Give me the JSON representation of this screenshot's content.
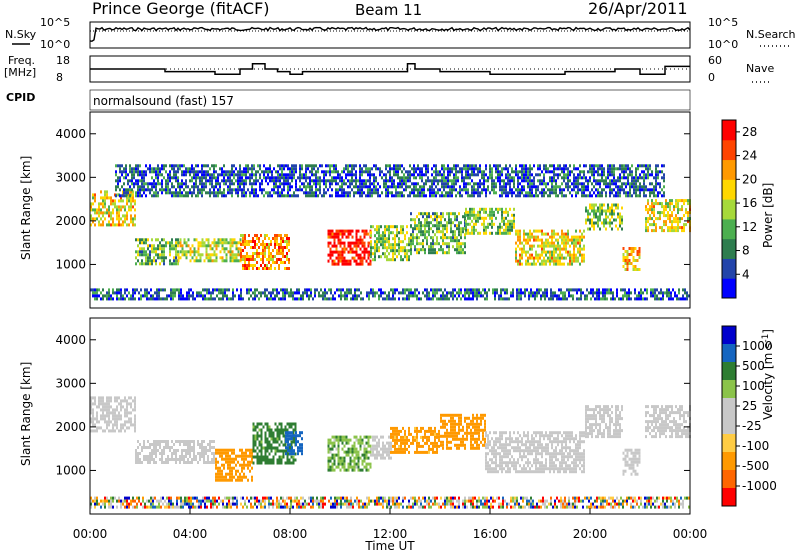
{
  "header": {
    "station": "Prince George (fitACF)",
    "beam": "Beam 11",
    "date": "26/Apr/2011"
  },
  "aux_labels": {
    "nsky": "N.Sky",
    "nsearch": "N.Search",
    "freq_line1": "Freq.",
    "freq_line2": "[MHz]",
    "nave": "Nave",
    "cpid": "CPID",
    "cpid_value": "normalsound (fast) 157",
    "noise_ticks": [
      "10^5",
      "10^0"
    ],
    "noise_ticks_right": [
      "10^5",
      "10^0"
    ],
    "freq_ticks": [
      "18",
      "8"
    ],
    "nave_ticks": [
      "60",
      "0"
    ]
  },
  "colors": {
    "power_scale": [
      "#0000ff",
      "#2244aa",
      "#2e7d4f",
      "#4caf50",
      "#a6d93a",
      "#ffd700",
      "#ff9900",
      "#ff4400",
      "#ff0000"
    ],
    "velocity_scale": [
      "#ff0000",
      "#ff6600",
      "#ff9900",
      "#ffcc44",
      "#c8c8c8",
      "#c8c8c8",
      "#8bc34a",
      "#2e7d32",
      "#1565c0",
      "#0000cc"
    ],
    "ground_scatter": "#c8c8c8"
  },
  "chart_data": [
    {
      "type": "line",
      "panel": "noise",
      "series": [
        {
          "name": "N.Sky",
          "x": [
            "00:00",
            "04:00",
            "08:00",
            "12:00",
            "16:00",
            "20:00",
            "00:00"
          ],
          "values": [
            100000.0,
            100000.0,
            100000.0,
            100000.0,
            100000.0,
            100000.0,
            100000.0
          ]
        }
      ],
      "yticks": [
        "10^0",
        "10^5"
      ],
      "ylim": [
        1,
        100000
      ],
      "yscale": "log"
    },
    {
      "type": "line",
      "panel": "frequency",
      "series": [
        {
          "name": "Freq.",
          "x_hours": [
            0,
            2,
            3,
            4,
            5,
            6,
            6.5,
            7,
            7.5,
            8,
            8.5,
            9,
            10,
            11,
            12,
            12.7,
            13,
            13.7,
            14,
            15.5,
            16,
            17,
            18,
            19,
            20,
            21,
            22,
            23,
            24
          ],
          "values": [
            13,
            13,
            12,
            12,
            11,
            13,
            15,
            13,
            12,
            11,
            12,
            12,
            12,
            12,
            12,
            15,
            13,
            13,
            12,
            12,
            11,
            11,
            11,
            12,
            12,
            13,
            11,
            14,
            14
          ]
        },
        {
          "name": "Nave",
          "x_hours": [
            0,
            24
          ],
          "values": [
            30,
            30
          ]
        }
      ],
      "yticks": [
        "8",
        "18"
      ],
      "ylim": [
        8,
        18
      ],
      "y2ticks": [
        "0",
        "60"
      ],
      "y2lim": [
        0,
        60
      ]
    },
    {
      "type": "heatmap",
      "panel": "power",
      "xlabel": "",
      "ylabel": "Slant Range [km]",
      "xlim_hours": [
        0,
        24
      ],
      "ylim": [
        0,
        4500
      ],
      "yticks": [
        1000,
        2000,
        3000,
        4000
      ],
      "colorbar_label": "Power [dB]",
      "colorbar_ticks": [
        4,
        8,
        12,
        16,
        20,
        24,
        28
      ],
      "colorbar_range": [
        0,
        30
      ],
      "regions": [
        {
          "t0": 0.0,
          "t1": 1.8,
          "r0": 1900,
          "r1": 2700,
          "value": 18
        },
        {
          "t0": 1.8,
          "t1": 3.5,
          "r0": 1000,
          "r1": 1600,
          "value": 12
        },
        {
          "t0": 3.5,
          "t1": 6.0,
          "r0": 1100,
          "r1": 1600,
          "value": 16
        },
        {
          "t0": 6.0,
          "t1": 8.0,
          "r0": 900,
          "r1": 1700,
          "value": 22
        },
        {
          "t0": 9.5,
          "t1": 11.2,
          "r0": 1000,
          "r1": 1800,
          "value": 28
        },
        {
          "t0": 11.2,
          "t1": 12.8,
          "r0": 1100,
          "r1": 1900,
          "value": 14
        },
        {
          "t0": 12.8,
          "t1": 15.0,
          "r0": 1300,
          "r1": 2200,
          "value": 12
        },
        {
          "t0": 15.0,
          "t1": 17.0,
          "r0": 1700,
          "r1": 2300,
          "value": 14
        },
        {
          "t0": 17.0,
          "t1": 19.8,
          "r0": 1000,
          "r1": 1800,
          "value": 18
        },
        {
          "t0": 19.8,
          "t1": 21.3,
          "r0": 1800,
          "r1": 2400,
          "value": 14
        },
        {
          "t0": 21.3,
          "t1": 22.0,
          "r0": 900,
          "r1": 1400,
          "value": 20
        },
        {
          "t0": 22.2,
          "t1": 24.0,
          "r0": 1800,
          "r1": 2500,
          "value": 18
        },
        {
          "t0": 0.0,
          "t1": 24.0,
          "r0": 180,
          "r1": 450,
          "value": 6
        },
        {
          "t0": 1.0,
          "t1": 23.0,
          "r0": 2600,
          "r1": 3300,
          "value": 6
        }
      ]
    },
    {
      "type": "heatmap",
      "panel": "velocity",
      "xlabel": "Time UT",
      "ylabel": "Slant Range [km]",
      "xlim_hours": [
        0,
        24
      ],
      "xticks": [
        "00:00",
        "04:00",
        "08:00",
        "12:00",
        "16:00",
        "20:00",
        "00:00"
      ],
      "ylim": [
        0,
        4500
      ],
      "yticks": [
        1000,
        2000,
        3000,
        4000
      ],
      "colorbar_label": "Velocity [m s^-1]",
      "colorbar_ticks": [
        "1000",
        "500",
        "100",
        "25",
        "-25",
        "-100",
        "-500",
        "-1000"
      ],
      "regions": [
        {
          "t0": 0.0,
          "t1": 1.8,
          "r0": 1900,
          "r1": 2700,
          "value": "ground"
        },
        {
          "t0": 1.8,
          "t1": 5.0,
          "r0": 1200,
          "r1": 1700,
          "value": "ground"
        },
        {
          "t0": 5.0,
          "t1": 6.5,
          "r0": 800,
          "r1": 1500,
          "value": -200
        },
        {
          "t0": 6.5,
          "t1": 8.2,
          "r0": 1200,
          "r1": 2100,
          "value": 150
        },
        {
          "t0": 7.8,
          "t1": 8.5,
          "r0": 1400,
          "r1": 1900,
          "value": 600
        },
        {
          "t0": 9.5,
          "t1": 11.2,
          "r0": 1000,
          "r1": 1800,
          "value": 80
        },
        {
          "t0": 11.2,
          "t1": 12.0,
          "r0": 1300,
          "r1": 1800,
          "value": "ground"
        },
        {
          "t0": 12.0,
          "t1": 14.0,
          "r0": 1400,
          "r1": 2000,
          "value": -150
        },
        {
          "t0": 14.0,
          "t1": 15.8,
          "r0": 1500,
          "r1": 2300,
          "value": -300
        },
        {
          "t0": 15.8,
          "t1": 19.8,
          "r0": 1000,
          "r1": 1900,
          "value": "ground"
        },
        {
          "t0": 19.8,
          "t1": 21.3,
          "r0": 1800,
          "r1": 2500,
          "value": "ground"
        },
        {
          "t0": 21.3,
          "t1": 22.0,
          "r0": 900,
          "r1": 1500,
          "value": "ground"
        },
        {
          "t0": 22.2,
          "t1": 24.0,
          "r0": 1800,
          "r1": 2500,
          "value": "ground"
        },
        {
          "t0": 0.0,
          "t1": 24.0,
          "r0": 150,
          "r1": 400,
          "value": "mixed"
        }
      ]
    }
  ]
}
